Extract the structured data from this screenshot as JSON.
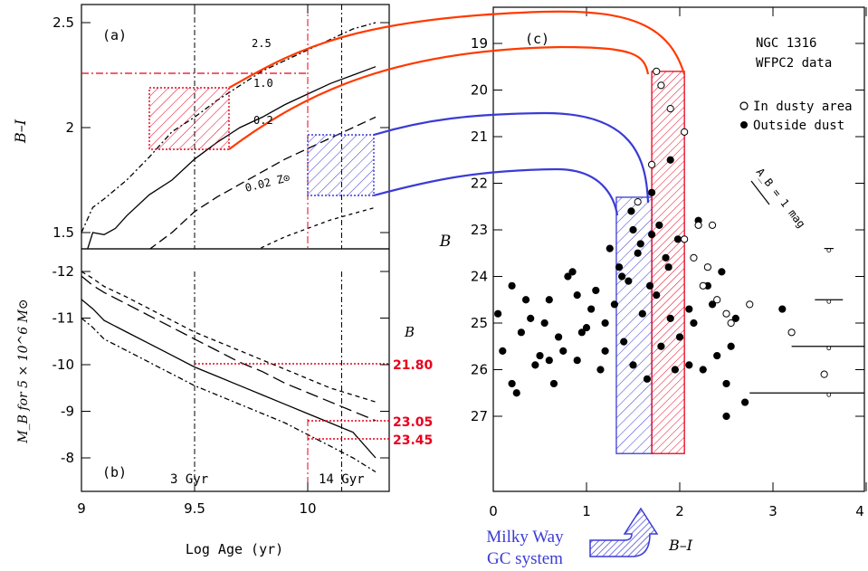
{
  "panel_a": {
    "tag": "(a)",
    "ylabel": "B–I",
    "yticks": [
      "2.5",
      "2",
      "1.5"
    ],
    "curve_labels": [
      "2.5",
      "1.0",
      "0.2",
      "0.02 Z⊙"
    ]
  },
  "panel_b": {
    "tag": "(b)",
    "ylabel": "M_B for 5 × 10^6 M⊙",
    "yticks": [
      "-12",
      "-11",
      "-10",
      "-9",
      "-8"
    ],
    "xticks": [
      "9",
      "9.5",
      "10"
    ],
    "xlabel": "Log Age (yr)",
    "age_3": "3 Gyr",
    "age_14": "14 Gyr",
    "b_header": "B",
    "b_values": [
      "21.80",
      "23.05",
      "23.45"
    ]
  },
  "panel_c": {
    "tag": "(c)",
    "title_line1": "NGC 1316",
    "title_line2": "WFPC2 data",
    "legend_open": "In dusty area",
    "legend_filled": "Outside dust",
    "extinction_label": "A_B = 1 mag",
    "ylabel": "B",
    "xlabel": "B–I",
    "yticks": [
      "19",
      "20",
      "21",
      "22",
      "23",
      "24",
      "25",
      "26",
      "27"
    ],
    "xticks": [
      "0",
      "1",
      "2",
      "3",
      "4"
    ],
    "mw_line1": "Milky Way",
    "mw_line2": "GC system"
  },
  "colors": {
    "red": "#e8001c",
    "blue": "#3b3bd6",
    "orange": "#ff3a00",
    "black": "#000000"
  },
  "chart_data": [
    {
      "type": "line",
      "title": "(a)",
      "xlabel": "Log Age (yr)",
      "ylabel": "B–I",
      "xlim": [
        9.0,
        10.3
      ],
      "ylim": [
        1.0,
        2.6
      ],
      "series": [
        {
          "name": "2.5",
          "x": [
            9.0,
            9.05,
            9.1,
            9.2,
            9.3,
            9.4,
            9.5,
            9.6,
            9.7,
            9.8,
            9.9,
            10.0,
            10.1,
            10.2,
            10.3
          ],
          "y": [
            1.5,
            1.62,
            1.66,
            1.75,
            1.86,
            1.98,
            2.05,
            2.13,
            2.2,
            2.27,
            2.32,
            2.37,
            2.42,
            2.47,
            2.5
          ]
        },
        {
          "name": "1.0",
          "x": [
            9.0,
            9.05,
            9.1,
            9.15,
            9.2,
            9.3,
            9.4,
            9.5,
            9.6,
            9.7,
            9.8,
            9.9,
            10.0,
            10.1,
            10.2,
            10.3
          ],
          "y": [
            1.33,
            1.5,
            1.49,
            1.52,
            1.58,
            1.68,
            1.75,
            1.85,
            1.93,
            2.0,
            2.05,
            2.11,
            2.16,
            2.21,
            2.25,
            2.29
          ]
        },
        {
          "name": "0.2",
          "x": [
            9.0,
            9.05,
            9.1,
            9.2,
            9.3,
            9.4,
            9.5,
            9.6,
            9.7,
            9.8,
            9.9,
            10.0,
            10.1,
            10.2,
            10.3
          ],
          "y": [
            1.1,
            1.18,
            1.23,
            1.33,
            1.42,
            1.5,
            1.6,
            1.67,
            1.73,
            1.79,
            1.85,
            1.9,
            1.95,
            2.0,
            2.05
          ]
        },
        {
          "name": "0.02 Z⊙",
          "x": [
            9.0,
            9.1,
            9.2,
            9.3,
            9.4,
            9.5,
            9.6,
            9.7,
            9.8,
            9.9,
            10.0,
            10.1,
            10.2,
            10.3
          ],
          "y": [
            0.98,
            1.02,
            1.08,
            1.13,
            1.19,
            1.25,
            1.31,
            1.37,
            1.43,
            1.48,
            1.52,
            1.56,
            1.59,
            1.62
          ]
        }
      ]
    },
    {
      "type": "line",
      "title": "(b)",
      "xlabel": "Log Age (yr)",
      "ylabel": "M_B for 5 × 10^6 M⊙",
      "xlim": [
        9.0,
        10.3
      ],
      "ylim": [
        -12.5,
        -7.5
      ],
      "series": [
        {
          "x": [
            9.0,
            9.05,
            9.1,
            9.2,
            9.3,
            9.4,
            9.5,
            9.6,
            9.7,
            9.8,
            9.9,
            10.0,
            10.1,
            10.2,
            10.3
          ],
          "y": [
            -12.0,
            -11.85,
            -11.68,
            -11.45,
            -11.2,
            -10.95,
            -10.7,
            -10.5,
            -10.3,
            -10.1,
            -9.9,
            -9.7,
            -9.5,
            -9.35,
            -9.2
          ]
        },
        {
          "x": [
            9.0,
            9.05,
            9.1,
            9.2,
            9.3,
            9.4,
            9.5,
            9.6,
            9.7,
            9.8,
            9.9,
            10.0,
            10.1,
            10.2,
            10.3
          ],
          "y": [
            -11.9,
            -11.7,
            -11.55,
            -11.3,
            -11.05,
            -10.8,
            -10.55,
            -10.3,
            -10.05,
            -9.85,
            -9.6,
            -9.4,
            -9.2,
            -9.0,
            -8.8
          ]
        },
        {
          "x": [
            9.0,
            9.05,
            9.1,
            9.2,
            9.3,
            9.4,
            9.5,
            9.6,
            9.7,
            9.8,
            9.9,
            10.0,
            10.1,
            10.2,
            10.3
          ],
          "y": [
            -11.4,
            -11.2,
            -10.95,
            -10.7,
            -10.45,
            -10.2,
            -9.95,
            -9.75,
            -9.55,
            -9.35,
            -9.15,
            -8.95,
            -8.75,
            -8.55,
            -8.0
          ]
        },
        {
          "x": [
            9.0,
            9.05,
            9.1,
            9.2,
            9.3,
            9.4,
            9.5,
            9.6,
            9.7,
            9.8,
            9.9,
            10.0,
            10.1,
            10.2,
            10.3
          ],
          "y": [
            -11.0,
            -10.8,
            -10.55,
            -10.3,
            -10.05,
            -9.8,
            -9.55,
            -9.35,
            -9.15,
            -8.95,
            -8.75,
            -8.5,
            -8.25,
            -8.0,
            -7.7
          ]
        }
      ],
      "reference_lines": [
        {
          "age": 9.5,
          "label": "3 Gyr"
        },
        {
          "age": 10.0
        },
        {
          "age": 10.15,
          "label": "14 Gyr"
        }
      ]
    },
    {
      "type": "scatter",
      "title": "(c)",
      "xlabel": "B–I",
      "ylabel": "B",
      "xlim": [
        0,
        4
      ],
      "ylim": [
        27.8,
        18.3
      ],
      "series": [
        {
          "name": "Outside dust",
          "x": [
            0.05,
            0.1,
            0.2,
            0.25,
            0.3,
            0.4,
            0.5,
            0.6,
            0.7,
            0.8,
            0.9,
            1.0,
            1.1,
            1.15,
            1.2,
            1.3,
            1.35,
            1.4,
            1.45,
            1.5,
            1.55,
            1.6,
            1.65,
            1.7,
            1.75,
            1.8,
            1.85,
            1.9,
            1.95,
            2.0,
            2.1,
            2.2,
            2.3,
            2.4,
            2.5,
            2.6,
            2.7,
            0.35,
            0.45,
            0.55,
            0.65,
            0.75,
            0.85,
            0.95,
            1.05,
            1.25,
            1.38,
            1.48,
            1.58,
            1.68,
            1.78,
            1.88,
            1.98,
            2.15,
            2.25,
            2.35,
            2.45,
            2.55,
            3.1,
            0.2,
            0.6,
            0.9,
            1.2,
            1.5,
            1.7,
            1.9,
            2.1,
            2.5
          ],
          "y": [
            24.8,
            25.6,
            24.2,
            26.5,
            25.2,
            24.9,
            25.7,
            24.5,
            25.3,
            24.0,
            25.8,
            25.1,
            24.3,
            26.0,
            25.6,
            24.6,
            23.8,
            25.4,
            24.1,
            25.9,
            23.5,
            24.8,
            26.2,
            23.1,
            24.4,
            25.5,
            23.6,
            24.9,
            26.0,
            25.3,
            24.7,
            22.8,
            24.2,
            25.7,
            26.3,
            24.9,
            26.7,
            24.5,
            25.9,
            25.0,
            26.3,
            25.6,
            23.9,
            25.2,
            24.7,
            23.4,
            24.0,
            22.6,
            23.3,
            24.2,
            22.9,
            23.8,
            23.2,
            25.0,
            26.0,
            24.6,
            23.9,
            25.5,
            24.7,
            26.3,
            25.8,
            24.4,
            25.0,
            23.0,
            22.2,
            21.5,
            25.9,
            27.0
          ]
        },
        {
          "name": "In dusty area",
          "x": [
            1.75,
            1.8,
            1.9,
            2.05,
            1.7,
            2.2,
            2.35,
            2.15,
            2.3,
            2.25,
            2.4,
            2.5,
            2.55,
            2.75,
            3.2,
            3.55,
            2.05,
            1.55
          ],
          "y": [
            19.6,
            19.9,
            20.4,
            20.9,
            21.6,
            22.9,
            22.9,
            23.6,
            23.8,
            24.2,
            24.5,
            24.8,
            25.0,
            24.6,
            25.2,
            26.1,
            23.2,
            22.4
          ]
        }
      ],
      "selection_boxes": [
        {
          "name": "Milky Way GC system",
          "x": [
            1.32,
            1.7
          ],
          "y": [
            22.3,
            27.8
          ]
        },
        {
          "x": [
            1.7,
            2.05
          ],
          "y": [
            19.6,
            27.8
          ]
        }
      ],
      "error_bars": [
        {
          "B": 23.4,
          "xerr": 0.05
        },
        {
          "B": 24.5,
          "xerr": 0.15
        },
        {
          "B": 25.5,
          "xerr": 0.4
        },
        {
          "B": 26.5,
          "xerr": 0.85
        }
      ]
    }
  ]
}
